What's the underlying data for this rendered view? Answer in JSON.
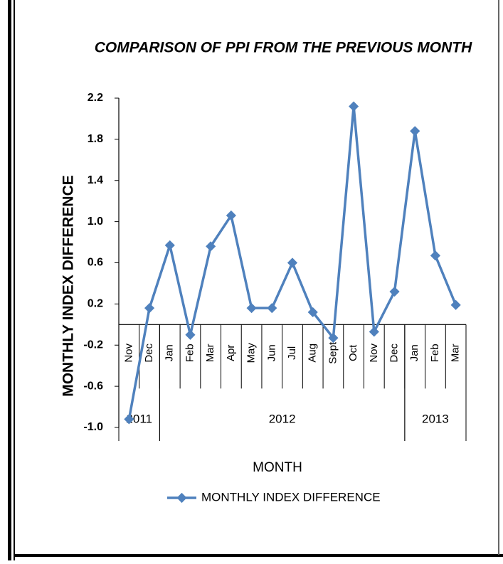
{
  "chart_data": {
    "type": "line",
    "title": "COMPARISON OF PPI FROM THE PREVIOUS MONTH",
    "y_label": "MONTHLY INDEX DIFFERENCE",
    "x_label": "MONTH",
    "categories": [
      "Nov",
      "Dec",
      "Jan",
      "Feb",
      "Mar",
      "Apr",
      "May",
      "Jun",
      "Jul",
      "Aug",
      "Sept",
      "Oct",
      "Nov",
      "Dec",
      "Jan",
      "Feb",
      "Mar"
    ],
    "groups": [
      {
        "label": "2011",
        "count": 2
      },
      {
        "label": "2012",
        "count": 12
      },
      {
        "label": "2013",
        "count": 3
      }
    ],
    "series": [
      {
        "name": "MONTHLY INDEX DIFFERENCE",
        "color": "#4f81bd",
        "values": [
          -0.92,
          0.16,
          0.77,
          -0.1,
          0.76,
          1.06,
          0.16,
          0.16,
          0.6,
          0.12,
          -0.13,
          2.12,
          -0.07,
          0.32,
          1.88,
          0.67,
          0.19
        ]
      }
    ],
    "ylim": [
      -1.0,
      2.2
    ],
    "yticks": [
      {
        "value": -1.0,
        "label": "-1.0"
      },
      -0.6,
      -0.2,
      0.2,
      0.6,
      {
        "value": 1.0,
        "label": "1.0"
      },
      1.4,
      1.8,
      2.2
    ],
    "legend": "bottom"
  }
}
